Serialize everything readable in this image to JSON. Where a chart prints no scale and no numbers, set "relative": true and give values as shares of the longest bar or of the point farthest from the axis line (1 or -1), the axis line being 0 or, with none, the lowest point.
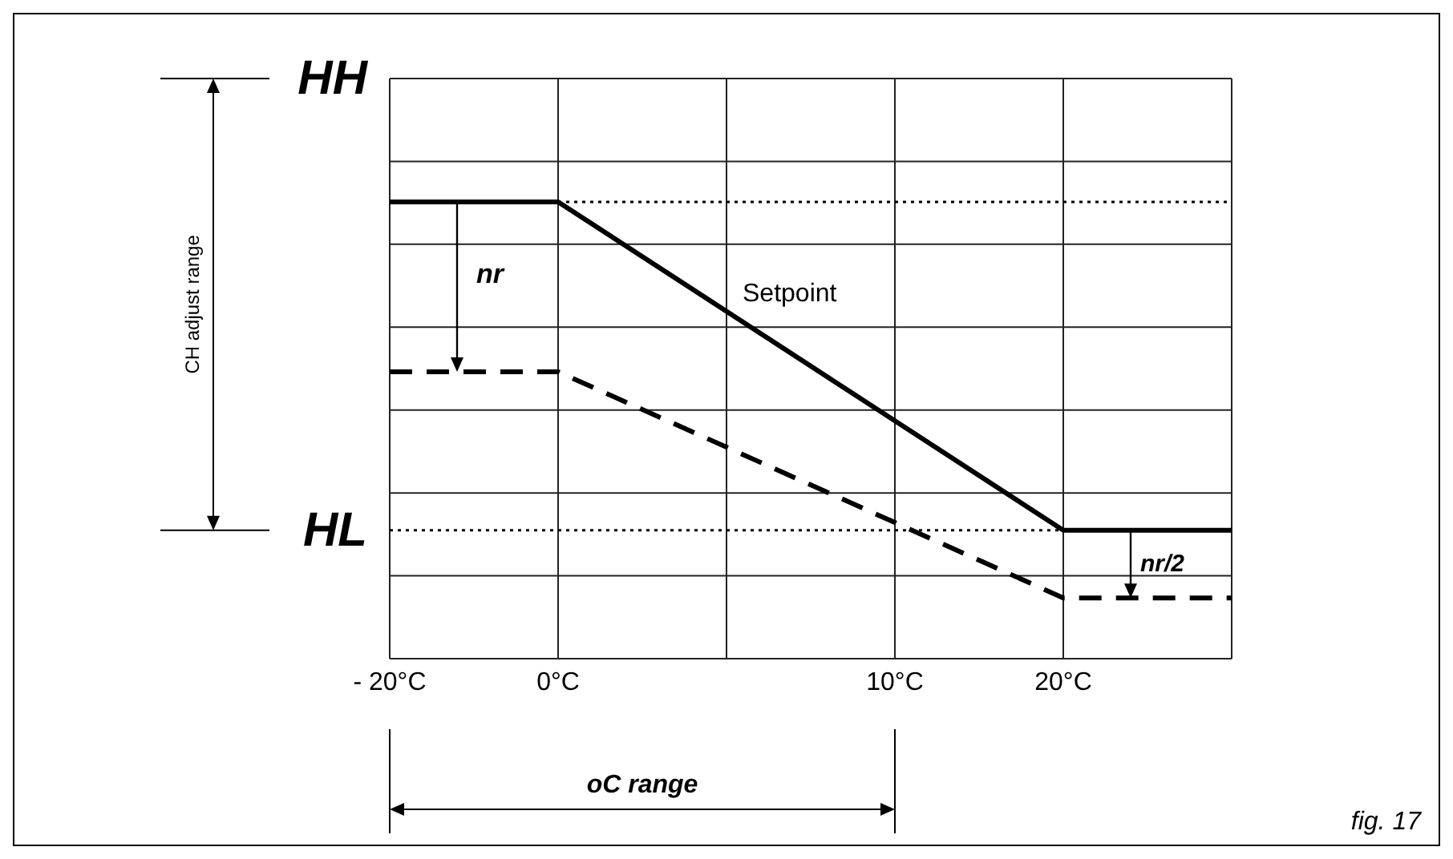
{
  "chart_data": {
    "type": "line",
    "relative": true,
    "categories": [
      "- 20°C",
      "0°C",
      null,
      "10°C",
      "20°C",
      null
    ],
    "series": [
      {
        "name": "Setpoint",
        "color": "#000000",
        "values": [
          1,
          1,
          null,
          null,
          0.281,
          0.281
        ]
      },
      {
        "color": "#000000",
        "line_style": "dashed",
        "values": [
          0.628,
          0.628,
          null,
          null,
          0.133,
          0.133
        ]
      }
    ],
    "ref_lines": [
      {
        "axis": "y",
        "value": 1,
        "line_style": "dotted",
        "color": "#000000"
      },
      {
        "axis": "y",
        "value": 0.281,
        "label": "HL",
        "line_style": "dotted",
        "color": "#000000"
      }
    ],
    "annotations": [
      "HH",
      "CH adjust range",
      "nr",
      "nr/2",
      "oC range",
      "fig. 17"
    ],
    "grid": true,
    "legend": false,
    "marker": "none",
    "line_style": "solid"
  }
}
